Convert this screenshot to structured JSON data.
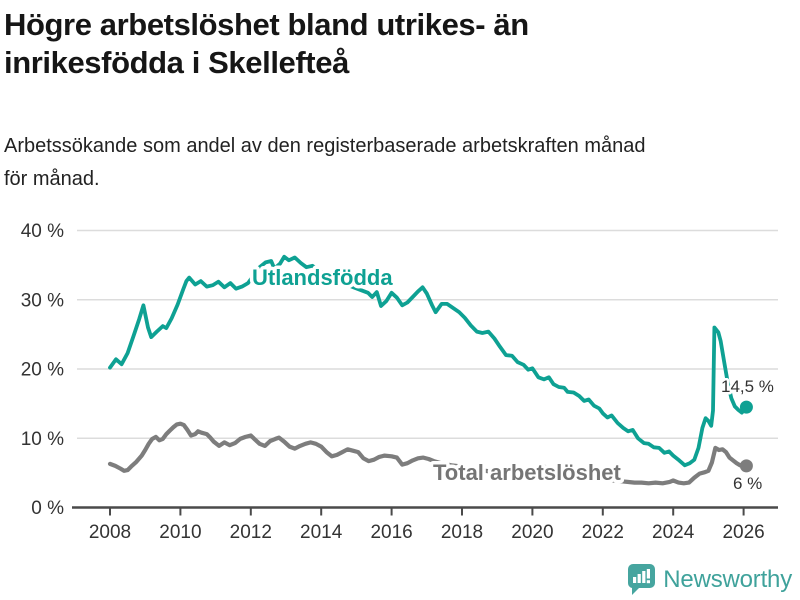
{
  "header": {
    "title_lines": [
      "Högre arbetslöshet bland utrikes- än",
      "inrikesfödda i Skellefteå"
    ],
    "subtitle_lines": [
      "Arbetssökande som andel av den registerbaserade arbetskraften månad",
      "för månad."
    ]
  },
  "footer": {
    "brand": "Newsworthy"
  },
  "colors": {
    "foreign_born_line": "#0EA193",
    "total_line": "#7D7D7D",
    "gridline": "#DCDCDC",
    "axis": "#4A4A4A",
    "tick_text": "#333333",
    "annotation_text": "#333333",
    "brand_teal": "#3FA29B"
  },
  "chart_data": {
    "type": "line",
    "title": "Högre arbetslöshet bland utrikes- än inrikesfödda i Skellefteå",
    "subtitle": "Arbetssökande som andel av den registerbaserade arbetskraften månad för månad.",
    "xlabel": "",
    "ylabel": "",
    "grid": "horizontal",
    "legend_position": "inline-labels",
    "x_axis": {
      "range": [
        2006.9,
        2027.0
      ],
      "ticks": [
        2008,
        2010,
        2012,
        2014,
        2016,
        2018,
        2020,
        2022,
        2024,
        2026
      ],
      "tick_labels": [
        "2008",
        "2010",
        "2012",
        "2014",
        "2016",
        "2018",
        "2020",
        "2022",
        "2024",
        "2026"
      ]
    },
    "y_axis": {
      "range": [
        0,
        43
      ],
      "ticks": [
        0,
        10,
        20,
        30,
        40
      ],
      "tick_labels": [
        "0 %",
        "10 %",
        "20 %",
        "30 %",
        "40 %"
      ]
    },
    "series": [
      {
        "name": "Utlandsfödda",
        "color": "#0EA193",
        "end_label": "14,5 %",
        "end_value": 14.5,
        "points": [
          [
            2008.0,
            20.2
          ],
          [
            2008.17,
            21.4
          ],
          [
            2008.33,
            20.7
          ],
          [
            2008.5,
            22.3
          ],
          [
            2008.67,
            24.8
          ],
          [
            2008.83,
            27.2
          ],
          [
            2008.95,
            29.2
          ],
          [
            2009.08,
            26.0
          ],
          [
            2009.17,
            24.6
          ],
          [
            2009.33,
            25.4
          ],
          [
            2009.5,
            26.2
          ],
          [
            2009.6,
            25.9
          ],
          [
            2009.75,
            27.3
          ],
          [
            2009.92,
            29.3
          ],
          [
            2010.08,
            31.5
          ],
          [
            2010.17,
            32.7
          ],
          [
            2010.25,
            33.2
          ],
          [
            2010.42,
            32.2
          ],
          [
            2010.58,
            32.7
          ],
          [
            2010.75,
            31.9
          ],
          [
            2010.92,
            32.1
          ],
          [
            2011.08,
            32.6
          ],
          [
            2011.25,
            31.8
          ],
          [
            2011.42,
            32.4
          ],
          [
            2011.58,
            31.6
          ],
          [
            2011.75,
            31.9
          ],
          [
            2011.92,
            32.4
          ],
          [
            2012.08,
            33.5
          ],
          [
            2012.25,
            34.7
          ],
          [
            2012.42,
            35.4
          ],
          [
            2012.58,
            35.6
          ],
          [
            2012.67,
            34.5
          ],
          [
            2012.83,
            35.2
          ],
          [
            2012.95,
            36.2
          ],
          [
            2013.08,
            35.7
          ],
          [
            2013.25,
            36.1
          ],
          [
            2013.42,
            35.3
          ],
          [
            2013.58,
            34.7
          ],
          [
            2013.75,
            34.9
          ],
          [
            2013.92,
            34.3
          ],
          [
            2014.17,
            33.6
          ],
          [
            2014.42,
            32.9
          ],
          [
            2014.67,
            32.3
          ],
          [
            2014.92,
            31.8
          ],
          [
            2015.17,
            31.3
          ],
          [
            2015.33,
            31.0
          ],
          [
            2015.45,
            30.4
          ],
          [
            2015.58,
            31.1
          ],
          [
            2015.7,
            29.1
          ],
          [
            2015.85,
            29.8
          ],
          [
            2016.0,
            31.0
          ],
          [
            2016.15,
            30.3
          ],
          [
            2016.3,
            29.2
          ],
          [
            2016.45,
            29.6
          ],
          [
            2016.6,
            30.4
          ],
          [
            2016.75,
            31.2
          ],
          [
            2016.88,
            31.8
          ],
          [
            2017.0,
            30.9
          ],
          [
            2017.15,
            29.2
          ],
          [
            2017.25,
            28.2
          ],
          [
            2017.42,
            29.4
          ],
          [
            2017.58,
            29.4
          ],
          [
            2017.75,
            28.8
          ],
          [
            2017.92,
            28.2
          ],
          [
            2018.08,
            27.4
          ],
          [
            2018.25,
            26.3
          ],
          [
            2018.42,
            25.4
          ],
          [
            2018.58,
            25.2
          ],
          [
            2018.75,
            25.4
          ],
          [
            2018.92,
            24.4
          ],
          [
            2019.08,
            23.2
          ],
          [
            2019.25,
            22.0
          ],
          [
            2019.42,
            21.9
          ],
          [
            2019.58,
            21.0
          ],
          [
            2019.75,
            20.6
          ],
          [
            2019.88,
            19.9
          ],
          [
            2020.0,
            20.1
          ],
          [
            2020.17,
            18.8
          ],
          [
            2020.33,
            18.5
          ],
          [
            2020.47,
            18.8
          ],
          [
            2020.6,
            17.8
          ],
          [
            2020.75,
            17.4
          ],
          [
            2020.9,
            17.3
          ],
          [
            2021.0,
            16.7
          ],
          [
            2021.17,
            16.6
          ],
          [
            2021.33,
            16.1
          ],
          [
            2021.47,
            15.4
          ],
          [
            2021.6,
            15.6
          ],
          [
            2021.75,
            14.7
          ],
          [
            2021.9,
            14.3
          ],
          [
            2022.0,
            13.6
          ],
          [
            2022.13,
            13.0
          ],
          [
            2022.25,
            13.3
          ],
          [
            2022.42,
            12.2
          ],
          [
            2022.58,
            11.5
          ],
          [
            2022.72,
            11.0
          ],
          [
            2022.85,
            11.2
          ],
          [
            2023.0,
            10.0
          ],
          [
            2023.17,
            9.3
          ],
          [
            2023.3,
            9.2
          ],
          [
            2023.45,
            8.7
          ],
          [
            2023.6,
            8.6
          ],
          [
            2023.75,
            7.9
          ],
          [
            2023.88,
            8.1
          ],
          [
            2024.0,
            7.5
          ],
          [
            2024.17,
            6.8
          ],
          [
            2024.33,
            6.1
          ],
          [
            2024.47,
            6.4
          ],
          [
            2024.6,
            6.9
          ],
          [
            2024.72,
            8.6
          ],
          [
            2024.83,
            11.5
          ],
          [
            2024.92,
            12.9
          ],
          [
            2025.0,
            12.5
          ],
          [
            2025.08,
            11.8
          ],
          [
            2025.13,
            14.0
          ],
          [
            2025.17,
            26.0
          ],
          [
            2025.28,
            25.3
          ],
          [
            2025.35,
            24.0
          ],
          [
            2025.45,
            21.0
          ],
          [
            2025.55,
            18.0
          ],
          [
            2025.65,
            15.8
          ],
          [
            2025.75,
            14.6
          ],
          [
            2025.85,
            14.1
          ],
          [
            2025.95,
            13.7
          ],
          [
            2026.08,
            14.5
          ]
        ]
      },
      {
        "name": "Total arbetslöshet",
        "color": "#7D7D7D",
        "end_label": "6 %",
        "end_value": 6,
        "points": [
          [
            2008.0,
            6.3
          ],
          [
            2008.15,
            6.0
          ],
          [
            2008.3,
            5.6
          ],
          [
            2008.4,
            5.3
          ],
          [
            2008.5,
            5.4
          ],
          [
            2008.6,
            5.9
          ],
          [
            2008.75,
            6.6
          ],
          [
            2008.9,
            7.5
          ],
          [
            2009.0,
            8.3
          ],
          [
            2009.1,
            9.2
          ],
          [
            2009.2,
            9.9
          ],
          [
            2009.3,
            10.2
          ],
          [
            2009.4,
            9.7
          ],
          [
            2009.5,
            9.9
          ],
          [
            2009.6,
            10.6
          ],
          [
            2009.7,
            11.1
          ],
          [
            2009.8,
            11.6
          ],
          [
            2009.9,
            12.0
          ],
          [
            2010.0,
            12.1
          ],
          [
            2010.1,
            11.9
          ],
          [
            2010.2,
            11.2
          ],
          [
            2010.3,
            10.4
          ],
          [
            2010.42,
            10.6
          ],
          [
            2010.5,
            11.0
          ],
          [
            2010.6,
            10.8
          ],
          [
            2010.75,
            10.6
          ],
          [
            2010.85,
            10.1
          ],
          [
            2010.95,
            9.5
          ],
          [
            2011.1,
            8.9
          ],
          [
            2011.25,
            9.4
          ],
          [
            2011.4,
            9.0
          ],
          [
            2011.55,
            9.3
          ],
          [
            2011.7,
            9.9
          ],
          [
            2011.85,
            10.2
          ],
          [
            2012.0,
            10.4
          ],
          [
            2012.1,
            9.9
          ],
          [
            2012.25,
            9.2
          ],
          [
            2012.4,
            8.9
          ],
          [
            2012.55,
            9.6
          ],
          [
            2012.7,
            9.9
          ],
          [
            2012.8,
            10.1
          ],
          [
            2012.95,
            9.5
          ],
          [
            2013.1,
            8.8
          ],
          [
            2013.25,
            8.5
          ],
          [
            2013.4,
            8.9
          ],
          [
            2013.55,
            9.2
          ],
          [
            2013.7,
            9.4
          ],
          [
            2013.85,
            9.2
          ],
          [
            2014.0,
            8.8
          ],
          [
            2014.15,
            8.0
          ],
          [
            2014.3,
            7.4
          ],
          [
            2014.45,
            7.6
          ],
          [
            2014.6,
            8.0
          ],
          [
            2014.75,
            8.4
          ],
          [
            2014.9,
            8.2
          ],
          [
            2015.05,
            8.0
          ],
          [
            2015.2,
            7.1
          ],
          [
            2015.35,
            6.7
          ],
          [
            2015.5,
            6.9
          ],
          [
            2015.65,
            7.3
          ],
          [
            2015.8,
            7.5
          ],
          [
            2016.0,
            7.4
          ],
          [
            2016.15,
            7.2
          ],
          [
            2016.3,
            6.2
          ],
          [
            2016.45,
            6.4
          ],
          [
            2016.6,
            6.8
          ],
          [
            2016.75,
            7.1
          ],
          [
            2016.9,
            7.2
          ],
          [
            2017.05,
            7.0
          ],
          [
            2017.2,
            6.7
          ],
          [
            2017.4,
            6.4
          ],
          [
            2017.7,
            6.1
          ],
          [
            2018.0,
            5.9
          ],
          [
            2018.4,
            5.5
          ],
          [
            2018.8,
            5.2
          ],
          [
            2019.2,
            5.0
          ],
          [
            2019.6,
            4.9
          ],
          [
            2020.0,
            5.2
          ],
          [
            2020.3,
            5.9
          ],
          [
            2020.6,
            5.6
          ],
          [
            2021.0,
            5.1
          ],
          [
            2021.4,
            4.6
          ],
          [
            2021.8,
            4.3
          ],
          [
            2022.1,
            4.2
          ],
          [
            2022.3,
            3.9
          ],
          [
            2022.5,
            3.8
          ],
          [
            2022.7,
            3.7
          ],
          [
            2022.9,
            3.6
          ],
          [
            2023.1,
            3.6
          ],
          [
            2023.3,
            3.5
          ],
          [
            2023.5,
            3.6
          ],
          [
            2023.7,
            3.5
          ],
          [
            2023.9,
            3.7
          ],
          [
            2024.0,
            3.9
          ],
          [
            2024.15,
            3.6
          ],
          [
            2024.3,
            3.5
          ],
          [
            2024.45,
            3.6
          ],
          [
            2024.6,
            4.3
          ],
          [
            2024.75,
            4.9
          ],
          [
            2024.9,
            5.1
          ],
          [
            2025.0,
            5.3
          ],
          [
            2025.1,
            6.5
          ],
          [
            2025.2,
            8.6
          ],
          [
            2025.3,
            8.3
          ],
          [
            2025.4,
            8.4
          ],
          [
            2025.5,
            8.0
          ],
          [
            2025.6,
            7.2
          ],
          [
            2025.7,
            6.8
          ],
          [
            2025.8,
            6.4
          ],
          [
            2025.9,
            6.1
          ],
          [
            2026.0,
            5.9
          ],
          [
            2026.08,
            6.0
          ]
        ]
      }
    ]
  }
}
